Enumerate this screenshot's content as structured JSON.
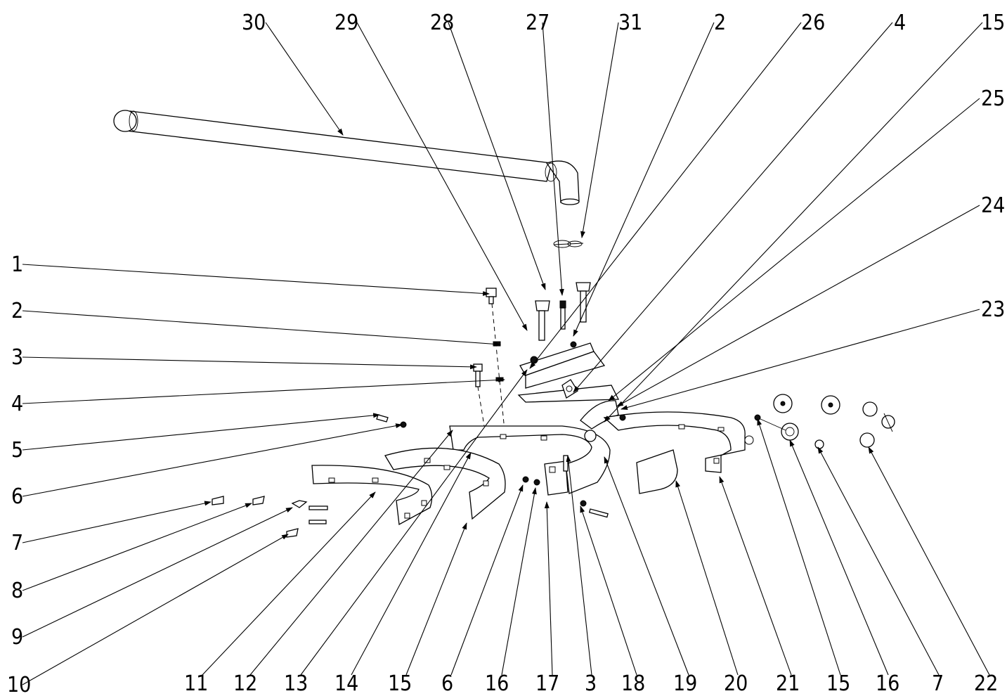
{
  "diagram": {
    "callouts_top": [
      "30",
      "29",
      "28",
      "27",
      "31",
      "2",
      "26",
      "4",
      "15"
    ],
    "callouts_right": [
      "25",
      "24",
      "23"
    ],
    "callouts_left": [
      "1",
      "2",
      "3",
      "4",
      "5",
      "6",
      "7",
      "8",
      "9",
      "10"
    ],
    "callouts_bottom": [
      "11",
      "12",
      "13",
      "14",
      "15",
      "6",
      "16",
      "17",
      "3",
      "18",
      "19",
      "20",
      "21",
      "15",
      "16",
      "7",
      "22"
    ]
  }
}
